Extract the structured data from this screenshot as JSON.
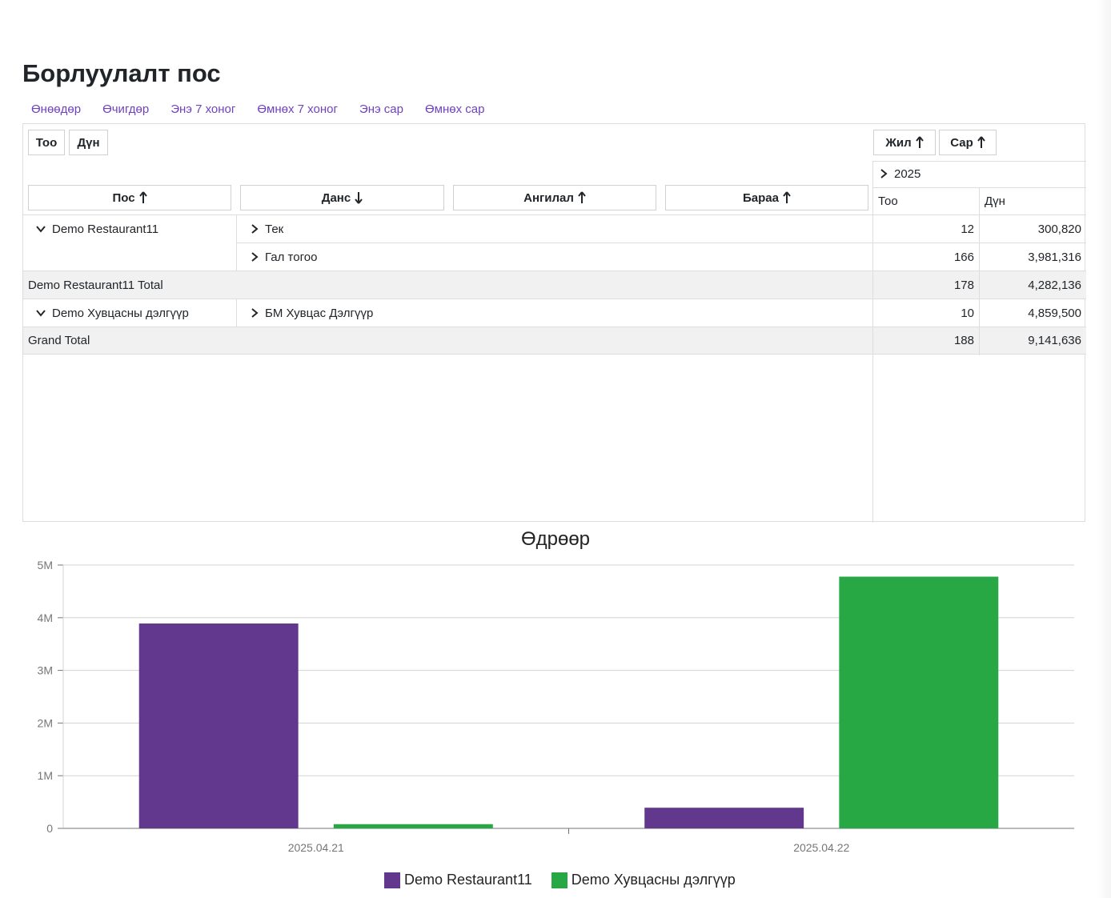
{
  "page": {
    "title": "Борлуулалт пос",
    "quick_links": [
      "Өнөөдөр",
      "Өчигдөр",
      "Энэ 7 хоног",
      "Өмнөх 7 хоног",
      "Энэ сар",
      "Өмнөх сар"
    ]
  },
  "pivot": {
    "data_fields": [
      "Тоо",
      "Дүн"
    ],
    "column_fields": [
      "Жил",
      "Сар"
    ],
    "row_fields": [
      {
        "label": "Пос",
        "sort": "asc"
      },
      {
        "label": "Данс",
        "sort": "desc"
      },
      {
        "label": "Ангилал",
        "sort": "asc"
      },
      {
        "label": "Бараа",
        "sort": "asc"
      }
    ],
    "year_header": "2025",
    "measure_headers": [
      "Тоо",
      "Дүн"
    ],
    "rows": [
      {
        "pos": "Demo Restaurant11",
        "account": "Тек",
        "count": "12",
        "amount": "300,820"
      },
      {
        "pos": "",
        "account": "Гал тогоо",
        "count": "166",
        "amount": "3,981,316"
      },
      {
        "total_label": "Demo Restaurant11 Total",
        "count": "178",
        "amount": "4,282,136"
      },
      {
        "pos": "Demo Хувцасны дэлгүүр",
        "account": "БМ Хувцас Дэлгүүр",
        "count": "10",
        "amount": "4,859,500"
      },
      {
        "total_label": "Grand Total",
        "count": "188",
        "amount": "9,141,636"
      }
    ]
  },
  "chart_data": {
    "type": "bar",
    "title": "Өдрөөр",
    "categories": [
      "2025.04.21",
      "2025.04.22"
    ],
    "series": [
      {
        "name": "Demo Restaurant11",
        "color": "#61388d",
        "values": [
          3890000,
          392136
        ]
      },
      {
        "name": "Demo Хувцасны дэлгүүр",
        "color": "#28a745",
        "values": [
          80000,
          4779500
        ]
      }
    ],
    "ylim": [
      0,
      5000000
    ],
    "ytick_labels": [
      "0",
      "1M",
      "2M",
      "3M",
      "4M",
      "5M"
    ],
    "grid": true,
    "legend": "bottom"
  }
}
